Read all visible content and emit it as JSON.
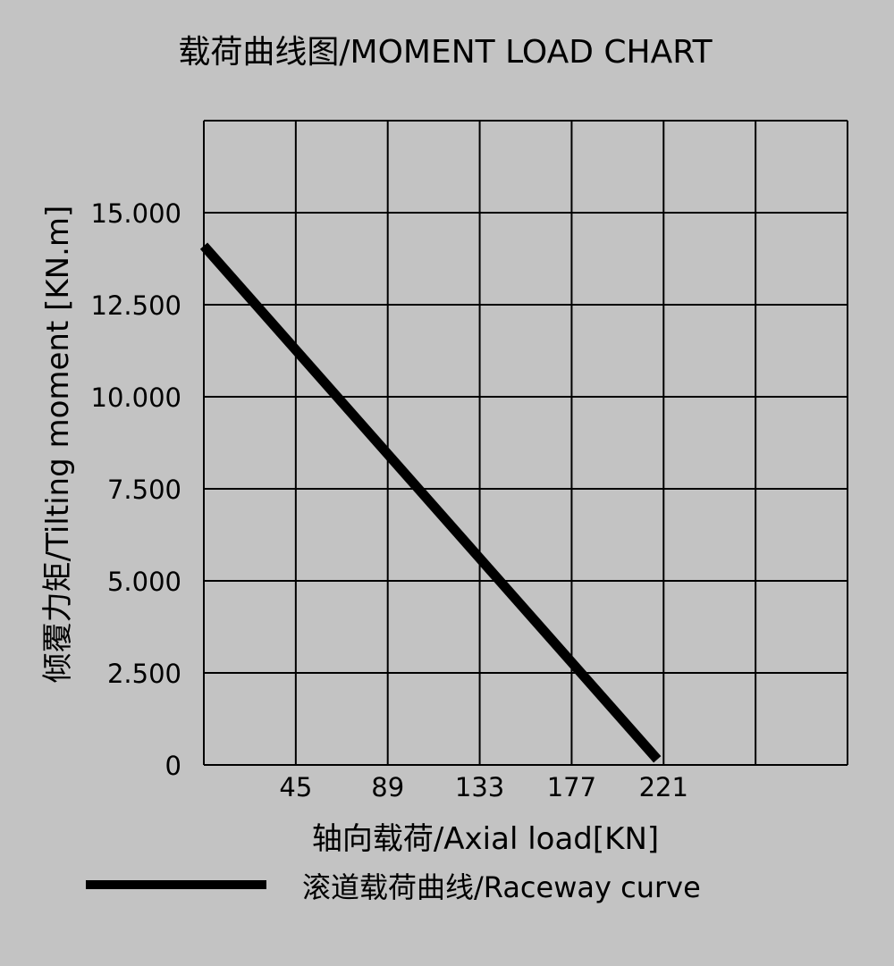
{
  "chart_data": {
    "type": "line",
    "title": "载荷曲线图/MOMENT LOAD CHART",
    "xlabel": "轴向载荷/Axial load[KN]",
    "ylabel": "倾覆力矩/Tilting moment [KN.m]",
    "xlim": [
      1,
      309
    ],
    "ylim": [
      0,
      17.5
    ],
    "x_ticks": [
      45,
      89,
      133,
      177,
      221
    ],
    "x_tick_labels": [
      "45",
      "89",
      "133",
      "177",
      "221"
    ],
    "y_ticks": [
      0,
      2.5,
      5,
      7.5,
      10,
      12.5,
      15
    ],
    "y_tick_labels": [
      "0",
      "2.500",
      "5.000",
      "7.500",
      "10.000",
      "12.500",
      "15.000"
    ],
    "grid": true,
    "grid_x_lines": [
      1,
      45,
      89,
      133,
      177,
      221,
      265,
      309
    ],
    "grid_y_lines": [
      0,
      2.5,
      5,
      7.5,
      10,
      12.5,
      15,
      17.5
    ],
    "legend_position": "bottom",
    "series": [
      {
        "name": "滚道载荷曲线/Raceway curve",
        "color": "#000000",
        "x": [
          1,
          218
        ],
        "y": [
          14.1,
          0.15
        ]
      }
    ]
  }
}
